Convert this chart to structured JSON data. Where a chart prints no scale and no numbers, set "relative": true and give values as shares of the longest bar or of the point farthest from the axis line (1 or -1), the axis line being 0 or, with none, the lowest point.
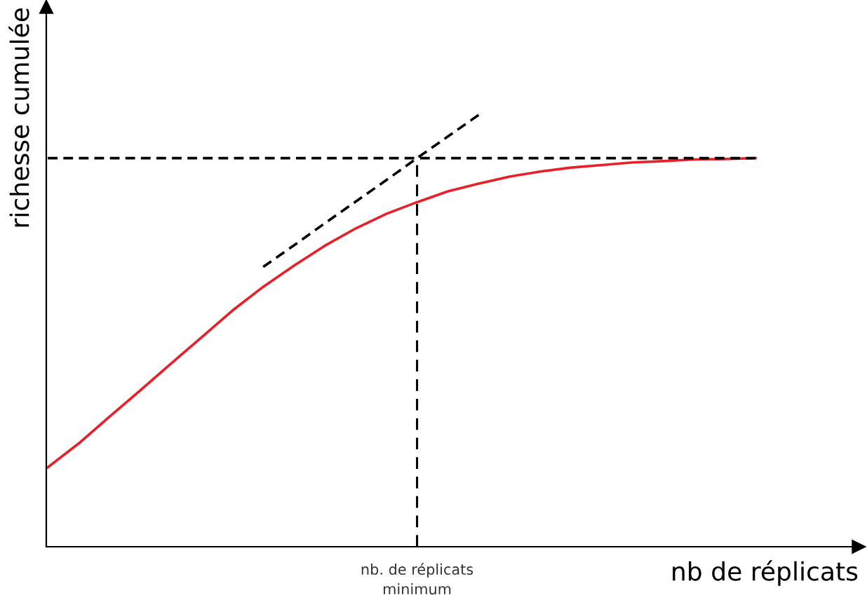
{
  "chart_data": {
    "type": "line",
    "relative": true,
    "xlabel": "nb de réplicats",
    "ylabel": "richesse cumulée",
    "categories": [
      null,
      null,
      null,
      null,
      null,
      null,
      null,
      null,
      null,
      null,
      null,
      null,
      null,
      null,
      null,
      null,
      null,
      null,
      null,
      null,
      null,
      null,
      null,
      null,
      null,
      null,
      null
    ],
    "series": [
      {
        "color": "#e8202a",
        "line_style": "solid",
        "values": [
          0.184,
          0.239,
          0.301,
          0.362,
          0.424,
          0.485,
          0.547,
          0.602,
          0.651,
          0.697,
          0.737,
          0.771,
          0.798,
          0.823,
          0.841,
          0.857,
          0.869,
          0.878,
          0.884,
          0.89,
          0.893,
          0.897,
          0.898,
          0.9,
          null,
          null,
          null
        ]
      },
      {
        "color": "#000000",
        "line_style": "dashed",
        "values": [
          null,
          null,
          null,
          null,
          null,
          null,
          null,
          0.648,
          0.698,
          0.749,
          0.799,
          0.849,
          0.9,
          0.95,
          1.0,
          null,
          null,
          null,
          null,
          null,
          null,
          null,
          null,
          null,
          null,
          null,
          null
        ]
      },
      {
        "color": "#000000",
        "line_style": "dashed",
        "values": [
          0.9,
          0.9,
          0.9,
          0.9,
          0.9,
          0.9,
          0.9,
          0.9,
          0.9,
          0.9,
          0.9,
          0.9,
          0.9,
          0.9,
          0.9,
          0.9,
          0.9,
          0.9,
          0.9,
          0.9,
          0.9,
          0.9,
          0.9,
          0.9,
          null,
          null,
          null
        ]
      }
    ],
    "annotations": [
      "nb. de réplicats\nminimum"
    ],
    "grid": false,
    "legend": false,
    "marker": "none"
  }
}
